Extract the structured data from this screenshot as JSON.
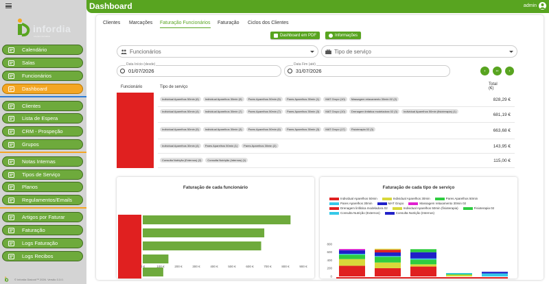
{
  "app": {
    "title": "Dashboard",
    "user": "admin"
  },
  "logo": {
    "word": "infordia",
    "tagline": "soluções informáticas"
  },
  "sidebar": {
    "items": [
      {
        "label": "Calendário",
        "icon": "calendar-icon",
        "active": false
      },
      {
        "label": "Salas",
        "icon": "rooms-icon",
        "active": false
      },
      {
        "label": "Funcionários",
        "icon": "staff-icon",
        "active": false
      },
      {
        "label": "Dashboard",
        "icon": "dashboard-icon",
        "active": true
      },
      {
        "label": "Clientes",
        "icon": "clients-icon",
        "active": false
      },
      {
        "label": "Lista de Espera",
        "icon": "waitlist-icon",
        "active": false
      },
      {
        "label": "CRM - Prospeção",
        "icon": "crm-icon",
        "active": false
      },
      {
        "label": "Grupos",
        "icon": "groups-icon",
        "active": false
      },
      {
        "label": "Notas Internas",
        "icon": "notes-icon",
        "active": false
      },
      {
        "label": "Tipos de Serviço",
        "icon": "service-types-icon",
        "active": false
      },
      {
        "label": "Planos",
        "icon": "plans-icon",
        "active": false
      },
      {
        "label": "Regulamentos/Emails",
        "icon": "regulations-icon",
        "active": false
      },
      {
        "label": "Artigos por Faturar",
        "icon": "articles-icon",
        "active": false
      },
      {
        "label": "Faturação",
        "icon": "billing-icon",
        "active": false
      },
      {
        "label": "Logs Faturação",
        "icon": "billing-logs-icon",
        "active": false
      },
      {
        "label": "Logs Recibos",
        "icon": "receipt-logs-icon",
        "active": false
      }
    ],
    "footer": "© Infordia Dialook™ 2026. Versão 3.3.0."
  },
  "tabs": [
    "Clientes",
    "Marcações",
    "Faturação Funcionários",
    "Faturação",
    "Ciclos dos Clientes"
  ],
  "active_tab": 2,
  "actions": {
    "pdf": "Dashboard em PDF",
    "info": "Informações"
  },
  "filters": {
    "employees_placeholder": "Funcionários",
    "service_placeholder": "Tipo de serviço",
    "start_label": "Data Início (desde)",
    "start_value": "01/07/2026",
    "end_label": "Data Fim (até)",
    "end_value": "31/07/2026",
    "nav": {
      "prev": "‹",
      "refresh": "›‹",
      "next": "›"
    }
  },
  "table": {
    "headers": {
      "employee": "Funcionário",
      "service": "Tipo de serviço",
      "total": "Total (€)"
    },
    "rows": [
      {
        "chips": [
          "Individual Aparelhos 50min (6)",
          "Individual Aparelhos 30min (9)",
          "Pares Aparelhos 50min (5)",
          "Pares Aparelhos 30min (1)",
          "MAT Grupo (10)",
          "Massagem relaxamento 30min 02 (2)"
        ],
        "total": "828,29 €"
      },
      {
        "chips": [
          "Individual Aparelhos 50min (4)",
          "Individual Aparelhos 30min (7)",
          "Pares Aparelhos 50min (7)",
          "Pares Aparelhos 30min (3)",
          "MAT Grupo (10)",
          "Drenagem linfática modeladora 02 (3)",
          "Individual Aparelhos 50min (fisioterapia) (1)"
        ],
        "total": "681,19 €"
      },
      {
        "chips": [
          "Individual Aparelhos 50min (5)",
          "Individual Aparelhos 30min (3)",
          "Pares Aparelhos 50min (6)",
          "Pares Aparelhos 30min (3)",
          "MAT Grupo (17)",
          "Fisioterapia 02 (3)"
        ],
        "total": "663,68 €"
      },
      {
        "chips": [
          "Individual Aparelhos 30min (4)",
          "Pares Aparelhos 50min (1)",
          "Pares Aparelhos 30min (2)"
        ],
        "total": "143,95 €"
      },
      {
        "chips": [
          "Consulta Nutrição (Externos) (2)",
          "Consulta Nutrição (Internos) (1)"
        ],
        "total": "115,00 €"
      }
    ]
  },
  "colors": {
    "green": "#58a420",
    "sidebar_green": "#6eaa3c",
    "active_orange": "#f4a623",
    "employee_red": "#e02020",
    "bar_green": "#6eaa3c"
  },
  "chart_data": [
    {
      "type": "bar",
      "orientation": "horizontal",
      "title": "Faturação de cada funcionário",
      "categories": [
        "",
        "",
        "",
        "",
        ""
      ],
      "values": [
        828.29,
        681.19,
        663.68,
        143.95,
        115.0
      ],
      "xlim": [
        0,
        900
      ],
      "xticks": [
        "0 €",
        "100 €",
        "200 €",
        "300 €",
        "400 €",
        "500 €",
        "600 €",
        "700 €",
        "800 €",
        "900 €"
      ],
      "bar_color": "#6eaa3c",
      "grid": false
    },
    {
      "type": "bar",
      "stacked": true,
      "title": "Faturação de cada tipo de serviço",
      "ylim": [
        0,
        900
      ],
      "yticks": [
        "0",
        "200",
        "400",
        "600",
        "800"
      ],
      "legend_position": "top",
      "series": [
        {
          "name": "Individual Aparelhos 50min",
          "color": "#e02020",
          "values": [
            265,
            205,
            245,
            0,
            0
          ]
        },
        {
          "name": "Individual Aparelhos 30min",
          "color": "#d8d83a",
          "values": [
            165,
            140,
            55,
            40,
            0
          ]
        },
        {
          "name": "Pares Aparelhos 50min",
          "color": "#2ecc40",
          "values": [
            110,
            140,
            120,
            20,
            0
          ]
        },
        {
          "name": "Pares Aparelhos 30min",
          "color": "#35c8e8",
          "values": [
            20,
            20,
            25,
            25,
            0
          ]
        },
        {
          "name": "MAT Grupo",
          "color": "#2020c8",
          "values": [
            90,
            90,
            155,
            0,
            0
          ]
        },
        {
          "name": "Massagem relaxamento 30min 02",
          "color": "#e020d0",
          "values": [
            30,
            0,
            0,
            0,
            0
          ]
        },
        {
          "name": "Drenagem linfática modeladora 02",
          "color": "#e02020",
          "values": [
            0,
            65,
            0,
            0,
            0
          ]
        },
        {
          "name": "Individual Aparelhos 50min (fisioterapia)",
          "color": "#d8d83a",
          "values": [
            0,
            25,
            0,
            0,
            0
          ]
        },
        {
          "name": "Fisioterapia 02",
          "color": "#2ecc40",
          "values": [
            0,
            0,
            75,
            0,
            0
          ]
        },
        {
          "name": "Consulta Nutrição (Externos)",
          "color": "#35c8e8",
          "values": [
            0,
            0,
            0,
            0,
            75
          ]
        },
        {
          "name": "Consulta Nutrição (Internos)",
          "color": "#2020c8",
          "values": [
            0,
            0,
            0,
            0,
            40
          ]
        }
      ]
    }
  ]
}
